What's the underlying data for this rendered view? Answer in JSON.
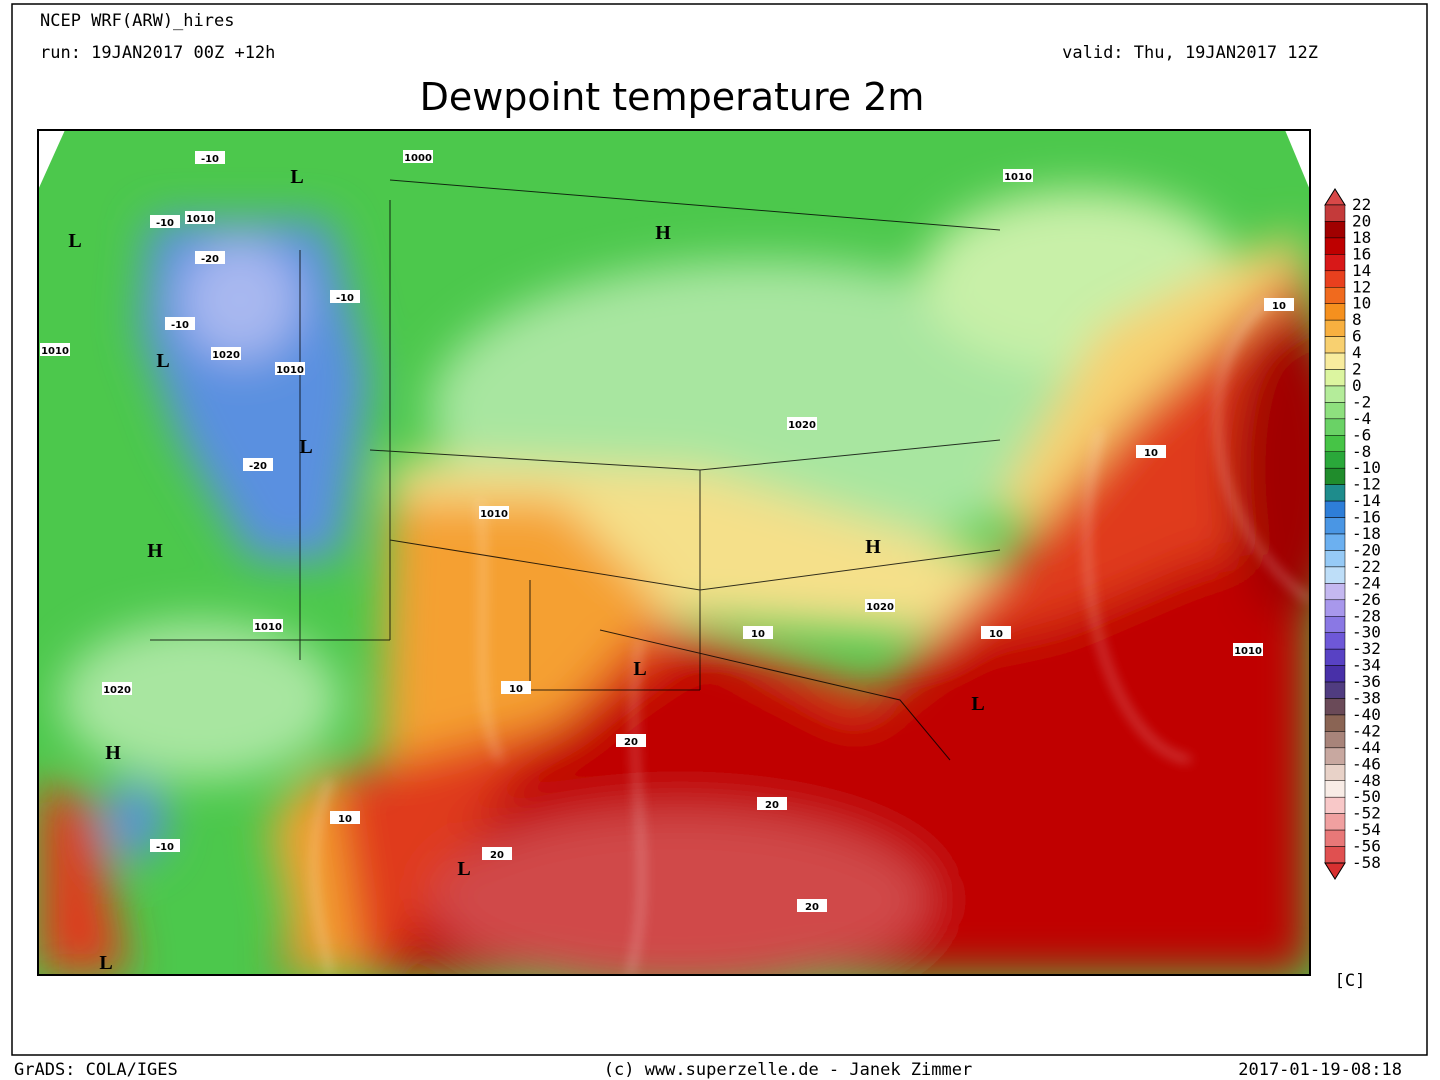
{
  "header": {
    "model": "NCEP WRF(ARW)_hires",
    "run": "run: 19JAN2017 00Z +12h",
    "valid": "valid: Thu, 19JAN2017 12Z",
    "title": "Dewpoint temperature 2m"
  },
  "legend": {
    "labels": [
      22,
      20,
      18,
      16,
      14,
      12,
      10,
      8,
      6,
      4,
      2,
      0,
      -2,
      -4,
      -6,
      -8,
      -10,
      -12,
      -14,
      -16,
      -18,
      -20,
      -22,
      -24,
      -26,
      -28,
      -30,
      -32,
      -34,
      -36,
      -38,
      -40,
      -42,
      -44,
      -46,
      -48,
      -50,
      -52,
      -54,
      -56,
      -58
    ],
    "colors": [
      "#d84848",
      "#c43a3a",
      "#a00000",
      "#be0000",
      "#d81818",
      "#e8401e",
      "#f06a1e",
      "#f5901e",
      "#f8b040",
      "#f8d070",
      "#f8ec9e",
      "#dcf5a0",
      "#b4ec9a",
      "#8ee07e",
      "#6ad266",
      "#46c446",
      "#2aa83a",
      "#208c2c",
      "#1e8c8c",
      "#2e7ed8",
      "#4a96e4",
      "#6cb0f0",
      "#96caf6",
      "#bedef8",
      "#c4b8f0",
      "#a898ec",
      "#8a78e4",
      "#6e58d8",
      "#5842c4",
      "#4830a8",
      "#503c80",
      "#6a4a58",
      "#8a6454",
      "#a8847a",
      "#c8a8a0",
      "#e8d2c8",
      "#f8ece6",
      "#f8c8c8",
      "#f0a0a0",
      "#e87878",
      "#e05050",
      "#d83030"
    ],
    "unit": "[C]"
  },
  "map_labels": [
    "L",
    "L",
    "L",
    "L",
    "L",
    "L",
    "L",
    "L",
    "H",
    "H",
    "H",
    "H",
    "1000",
    "1010",
    "1010",
    "1010",
    "1020",
    "1010",
    "1010",
    "1010",
    "1020",
    "1020",
    "1020",
    "1010",
    "10",
    "10",
    "10",
    "10",
    "10",
    "10",
    "20",
    "20",
    "20",
    "20",
    "-10",
    "-10",
    "-20",
    "-10",
    "-10",
    "-20",
    "-10"
  ],
  "footer": {
    "left": "GrADS: COLA/IGES",
    "center": "(c) www.superzelle.de - Janek Zimmer",
    "right": "2017-01-19-08:18"
  }
}
